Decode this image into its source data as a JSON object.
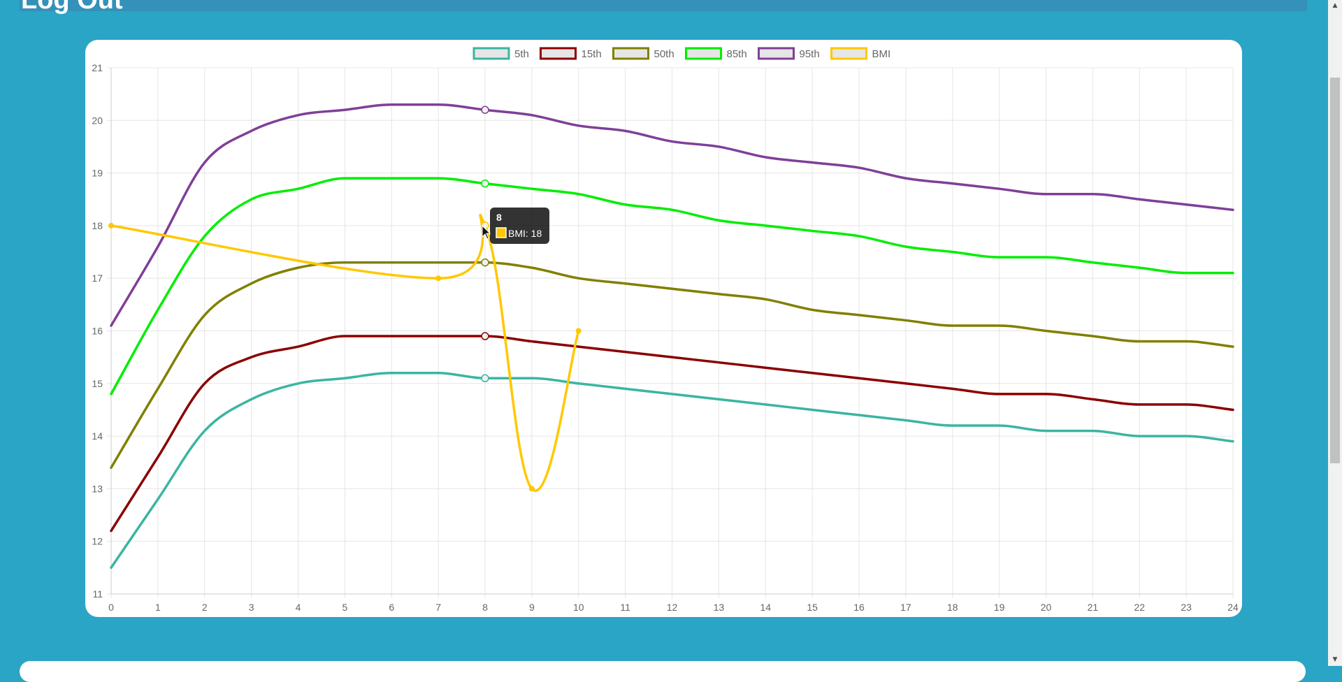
{
  "header": {
    "title": "Log Out"
  },
  "colors": {
    "page_bg": "#2aa5c5",
    "header_bar": "#3591b9",
    "card_bg": "#ffffff"
  },
  "chart_data": {
    "type": "line",
    "title": "",
    "xlabel": "",
    "ylabel": "",
    "xlim": [
      0,
      24
    ],
    "ylim": [
      11,
      21
    ],
    "x_ticks": [
      "0",
      "1",
      "2",
      "3",
      "4",
      "5",
      "6",
      "7",
      "8",
      "9",
      "10",
      "11",
      "12",
      "13",
      "14",
      "15",
      "16",
      "17",
      "18",
      "19",
      "20",
      "21",
      "22",
      "23",
      "24"
    ],
    "y_ticks": [
      "11",
      "12",
      "13",
      "14",
      "15",
      "16",
      "17",
      "18",
      "19",
      "20",
      "21"
    ],
    "grid": true,
    "legend_position": "top-center",
    "series": [
      {
        "name": "5th",
        "color": "#3bb5a0",
        "values": [
          11.5,
          12.8,
          14.1,
          14.7,
          15.0,
          15.1,
          15.2,
          15.2,
          15.1,
          15.1,
          15.0,
          14.9,
          14.8,
          14.7,
          14.6,
          14.5,
          14.4,
          14.3,
          14.2,
          14.2,
          14.1,
          14.1,
          14.0,
          14.0,
          13.9
        ]
      },
      {
        "name": "15th",
        "color": "#8b0000",
        "values": [
          12.2,
          13.6,
          15.0,
          15.5,
          15.7,
          15.9,
          15.9,
          15.9,
          15.9,
          15.8,
          15.7,
          15.6,
          15.5,
          15.4,
          15.3,
          15.2,
          15.1,
          15.0,
          14.9,
          14.8,
          14.8,
          14.7,
          14.6,
          14.6,
          14.5
        ]
      },
      {
        "name": "50th",
        "color": "#808000",
        "values": [
          13.4,
          14.9,
          16.3,
          16.9,
          17.2,
          17.3,
          17.3,
          17.3,
          17.3,
          17.2,
          17.0,
          16.9,
          16.8,
          16.7,
          16.6,
          16.4,
          16.3,
          16.2,
          16.1,
          16.1,
          16.0,
          15.9,
          15.8,
          15.8,
          15.7
        ]
      },
      {
        "name": "85th",
        "color": "#00ee00",
        "values": [
          14.8,
          16.4,
          17.8,
          18.5,
          18.7,
          18.9,
          18.9,
          18.9,
          18.8,
          18.7,
          18.6,
          18.4,
          18.3,
          18.1,
          18.0,
          17.9,
          17.8,
          17.6,
          17.5,
          17.4,
          17.4,
          17.3,
          17.2,
          17.1,
          17.1
        ]
      },
      {
        "name": "95th",
        "color": "#7f3f98",
        "values": [
          16.1,
          17.6,
          19.2,
          19.8,
          20.1,
          20.2,
          20.3,
          20.3,
          20.2,
          20.1,
          19.9,
          19.8,
          19.6,
          19.5,
          19.3,
          19.2,
          19.1,
          18.9,
          18.8,
          18.7,
          18.6,
          18.6,
          18.5,
          18.4,
          18.3
        ]
      },
      {
        "name": "BMI",
        "color": "#ffc800",
        "points": [
          [
            0,
            18
          ],
          [
            7,
            17
          ],
          [
            8,
            18
          ],
          [
            9,
            13
          ],
          [
            10,
            16
          ]
        ]
      }
    ],
    "hover_x": 8,
    "tooltip": {
      "title": "8",
      "label": "BMI: 18"
    }
  }
}
